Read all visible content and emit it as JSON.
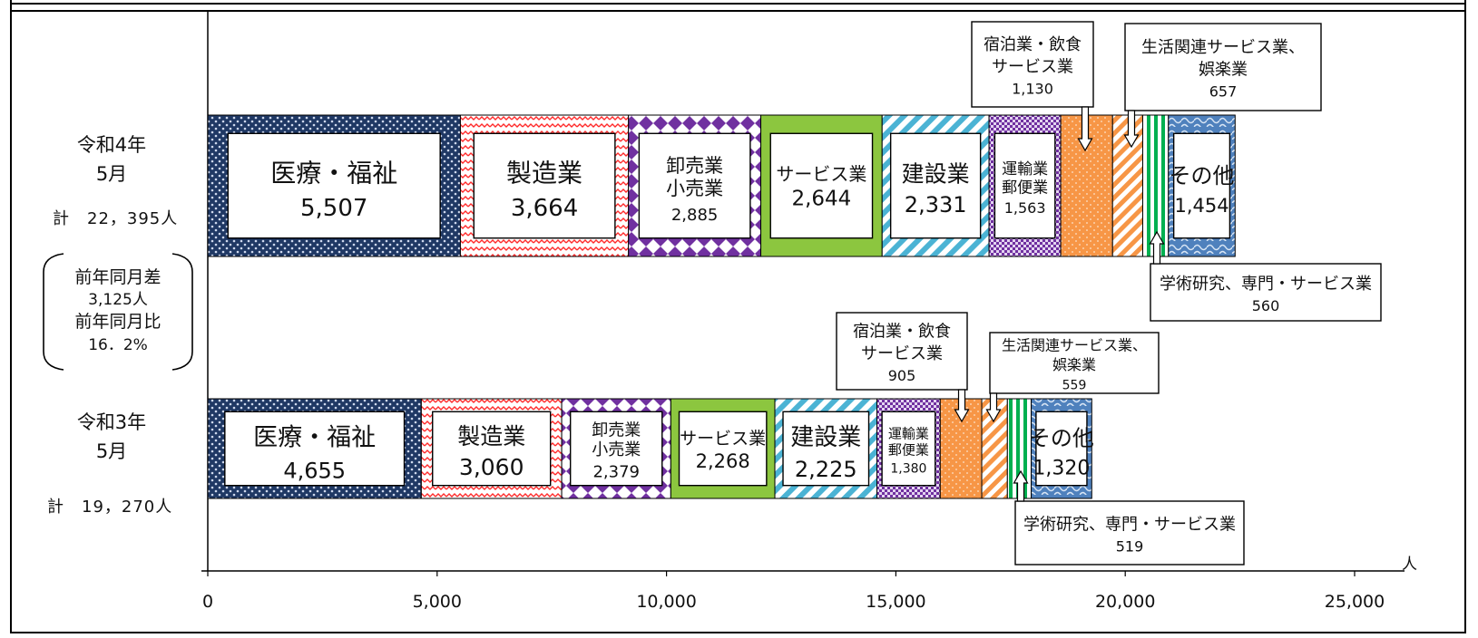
{
  "chart_data": {
    "type": "stacked-bar-horizontal",
    "x_axis": {
      "ticks": [
        "0",
        "5,000",
        "10,000",
        "15,000",
        "20,000",
        "25,000"
      ],
      "range": [
        0,
        25000
      ],
      "unit": "人"
    },
    "bars": [
      {
        "name_line1": "令和4年",
        "name_line2": "5月",
        "total": "計　22，395人",
        "segments": [
          {
            "label": "医療・福祉",
            "value": 5507,
            "value_label": "5,507"
          },
          {
            "label": "製造業",
            "value": 3664,
            "value_label": "3,664"
          },
          {
            "label": "卸売業\n小売業",
            "value": 2885,
            "value_label": "2,885"
          },
          {
            "label": "サービス業",
            "value": 2644,
            "value_label": "2,644"
          },
          {
            "label": "建設業",
            "value": 2331,
            "value_label": "2,331"
          },
          {
            "label": "運輸業\n郵便業",
            "value": 1563,
            "value_label": "1,563"
          },
          {
            "label": "宿泊業・飲食\nサービス業",
            "value": 1130,
            "value_label": "1,130"
          },
          {
            "label": "生活関連サービス業、\n娯楽業",
            "value": 657,
            "value_label": "657"
          },
          {
            "label": "学術研究、専門・サービス業",
            "value": 560,
            "value_label": "560"
          },
          {
            "label": "その他",
            "value": 1454,
            "value_label": "1,454"
          }
        ]
      },
      {
        "name_line1": "令和3年",
        "name_line2": "5月",
        "total": "計　19，270人",
        "segments": [
          {
            "label": "医療・福祉",
            "value": 4655,
            "value_label": "4,655"
          },
          {
            "label": "製造業",
            "value": 3060,
            "value_label": "3,060"
          },
          {
            "label": "卸売業\n小売業",
            "value": 2379,
            "value_label": "2,379"
          },
          {
            "label": "サービス業",
            "value": 2268,
            "value_label": "2,268"
          },
          {
            "label": "建設業",
            "value": 2225,
            "value_label": "2,225"
          },
          {
            "label": "運輸業\n郵便業",
            "value": 1380,
            "value_label": "1,380"
          },
          {
            "label": "宿泊業・飲食\nサービス業",
            "value": 905,
            "value_label": "905"
          },
          {
            "label": "生活関連サービス業、\n娯楽業",
            "value": 559,
            "value_label": "559"
          },
          {
            "label": "学術研究、専門・サービス業",
            "value": 519,
            "value_label": "519"
          },
          {
            "label": "その他",
            "value": 1320,
            "value_label": "1,320"
          }
        ]
      }
    ],
    "comparison": {
      "diff_label": "前年同月差",
      "diff_value": "3,125人",
      "ratio_label": "前年同月比",
      "ratio_value": "16．2%"
    },
    "colors": {
      "medical": "#1f3864",
      "manufacturing": "#ff2a2a",
      "wholesale": "#7030a0",
      "service": "#8cc63f",
      "construction": "#4bb3d4",
      "transport": "#7030a0",
      "hospitality": "#f79646",
      "living": "#f79646",
      "research": "#00b050",
      "other": "#4f81bd"
    }
  }
}
